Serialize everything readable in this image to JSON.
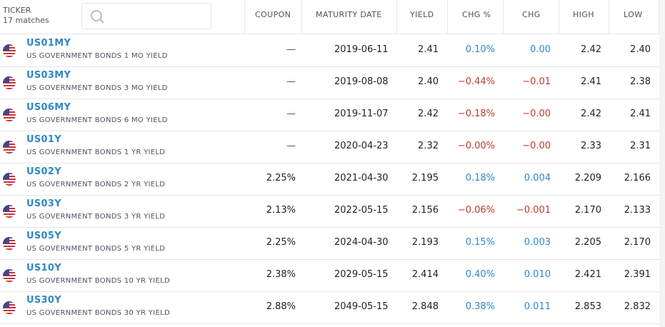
{
  "header": {
    "ticker_title": "TICKER",
    "matches": "17 matches",
    "search_placeholder": "",
    "columns": [
      "COUPON",
      "MATURITY DATE",
      "YIELD",
      "CHG %",
      "CHG",
      "HIGH",
      "LOW"
    ]
  },
  "rows": [
    {
      "symbol": "US01MY",
      "name": "US GOVERNMENT BONDS 1 MO YIELD",
      "coupon": "—",
      "maturity": "2019-06-11",
      "yield": "2.41",
      "chg_pct": "0.10%",
      "chg": "0.00",
      "high": "2.42",
      "low": "2.40"
    },
    {
      "symbol": "US03MY",
      "name": "US GOVERNMENT BONDS 3 MO YIELD",
      "coupon": "—",
      "maturity": "2019-08-08",
      "yield": "2.40",
      "chg_pct": "−0.44%",
      "chg": "−0.01",
      "high": "2.41",
      "low": "2.38"
    },
    {
      "symbol": "US06MY",
      "name": "US GOVERNMENT BONDS 6 MO YIELD",
      "coupon": "—",
      "maturity": "2019-11-07",
      "yield": "2.42",
      "chg_pct": "−0.18%",
      "chg": "−0.00",
      "high": "2.42",
      "low": "2.41"
    },
    {
      "symbol": "US01Y",
      "name": "US GOVERNMENT BONDS 1 YR YIELD",
      "coupon": "—",
      "maturity": "2020-04-23",
      "yield": "2.32",
      "chg_pct": "−0.00%",
      "chg": "−0.00",
      "high": "2.33",
      "low": "2.31"
    },
    {
      "symbol": "US02Y",
      "name": "US GOVERNMENT BONDS 2 YR YIELD",
      "coupon": "2.25%",
      "maturity": "2021-04-30",
      "yield": "2.195",
      "chg_pct": "0.18%",
      "chg": "0.004",
      "high": "2.209",
      "low": "2.166"
    },
    {
      "symbol": "US03Y",
      "name": "US GOVERNMENT BONDS 3 YR YIELD",
      "coupon": "2.13%",
      "maturity": "2022-05-15",
      "yield": "2.156",
      "chg_pct": "−0.06%",
      "chg": "−0.001",
      "high": "2.170",
      "low": "2.133"
    },
    {
      "symbol": "US05Y",
      "name": "US GOVERNMENT BONDS 5 YR YIELD",
      "coupon": "2.25%",
      "maturity": "2024-04-30",
      "yield": "2.193",
      "chg_pct": "0.15%",
      "chg": "0.003",
      "high": "2.205",
      "low": "2.170"
    },
    {
      "symbol": "US10Y",
      "name": "US GOVERNMENT BONDS 10 YR YIELD",
      "coupon": "2.38%",
      "maturity": "2029-05-15",
      "yield": "2.414",
      "chg_pct": "0.40%",
      "chg": "0.010",
      "high": "2.421",
      "low": "2.391"
    },
    {
      "symbol": "US30Y",
      "name": "US GOVERNMENT BONDS 30 YR YIELD",
      "coupon": "2.88%",
      "maturity": "2049-05-15",
      "yield": "2.848",
      "chg_pct": "0.38%",
      "chg": "0.011",
      "high": "2.853",
      "low": "2.832"
    }
  ],
  "colors": {
    "positive": "#2e87c8",
    "negative": "#c0392b",
    "symbol": "#2e87c8"
  },
  "icons": {
    "flag": "us-flag-icon",
    "search": "search-icon"
  }
}
